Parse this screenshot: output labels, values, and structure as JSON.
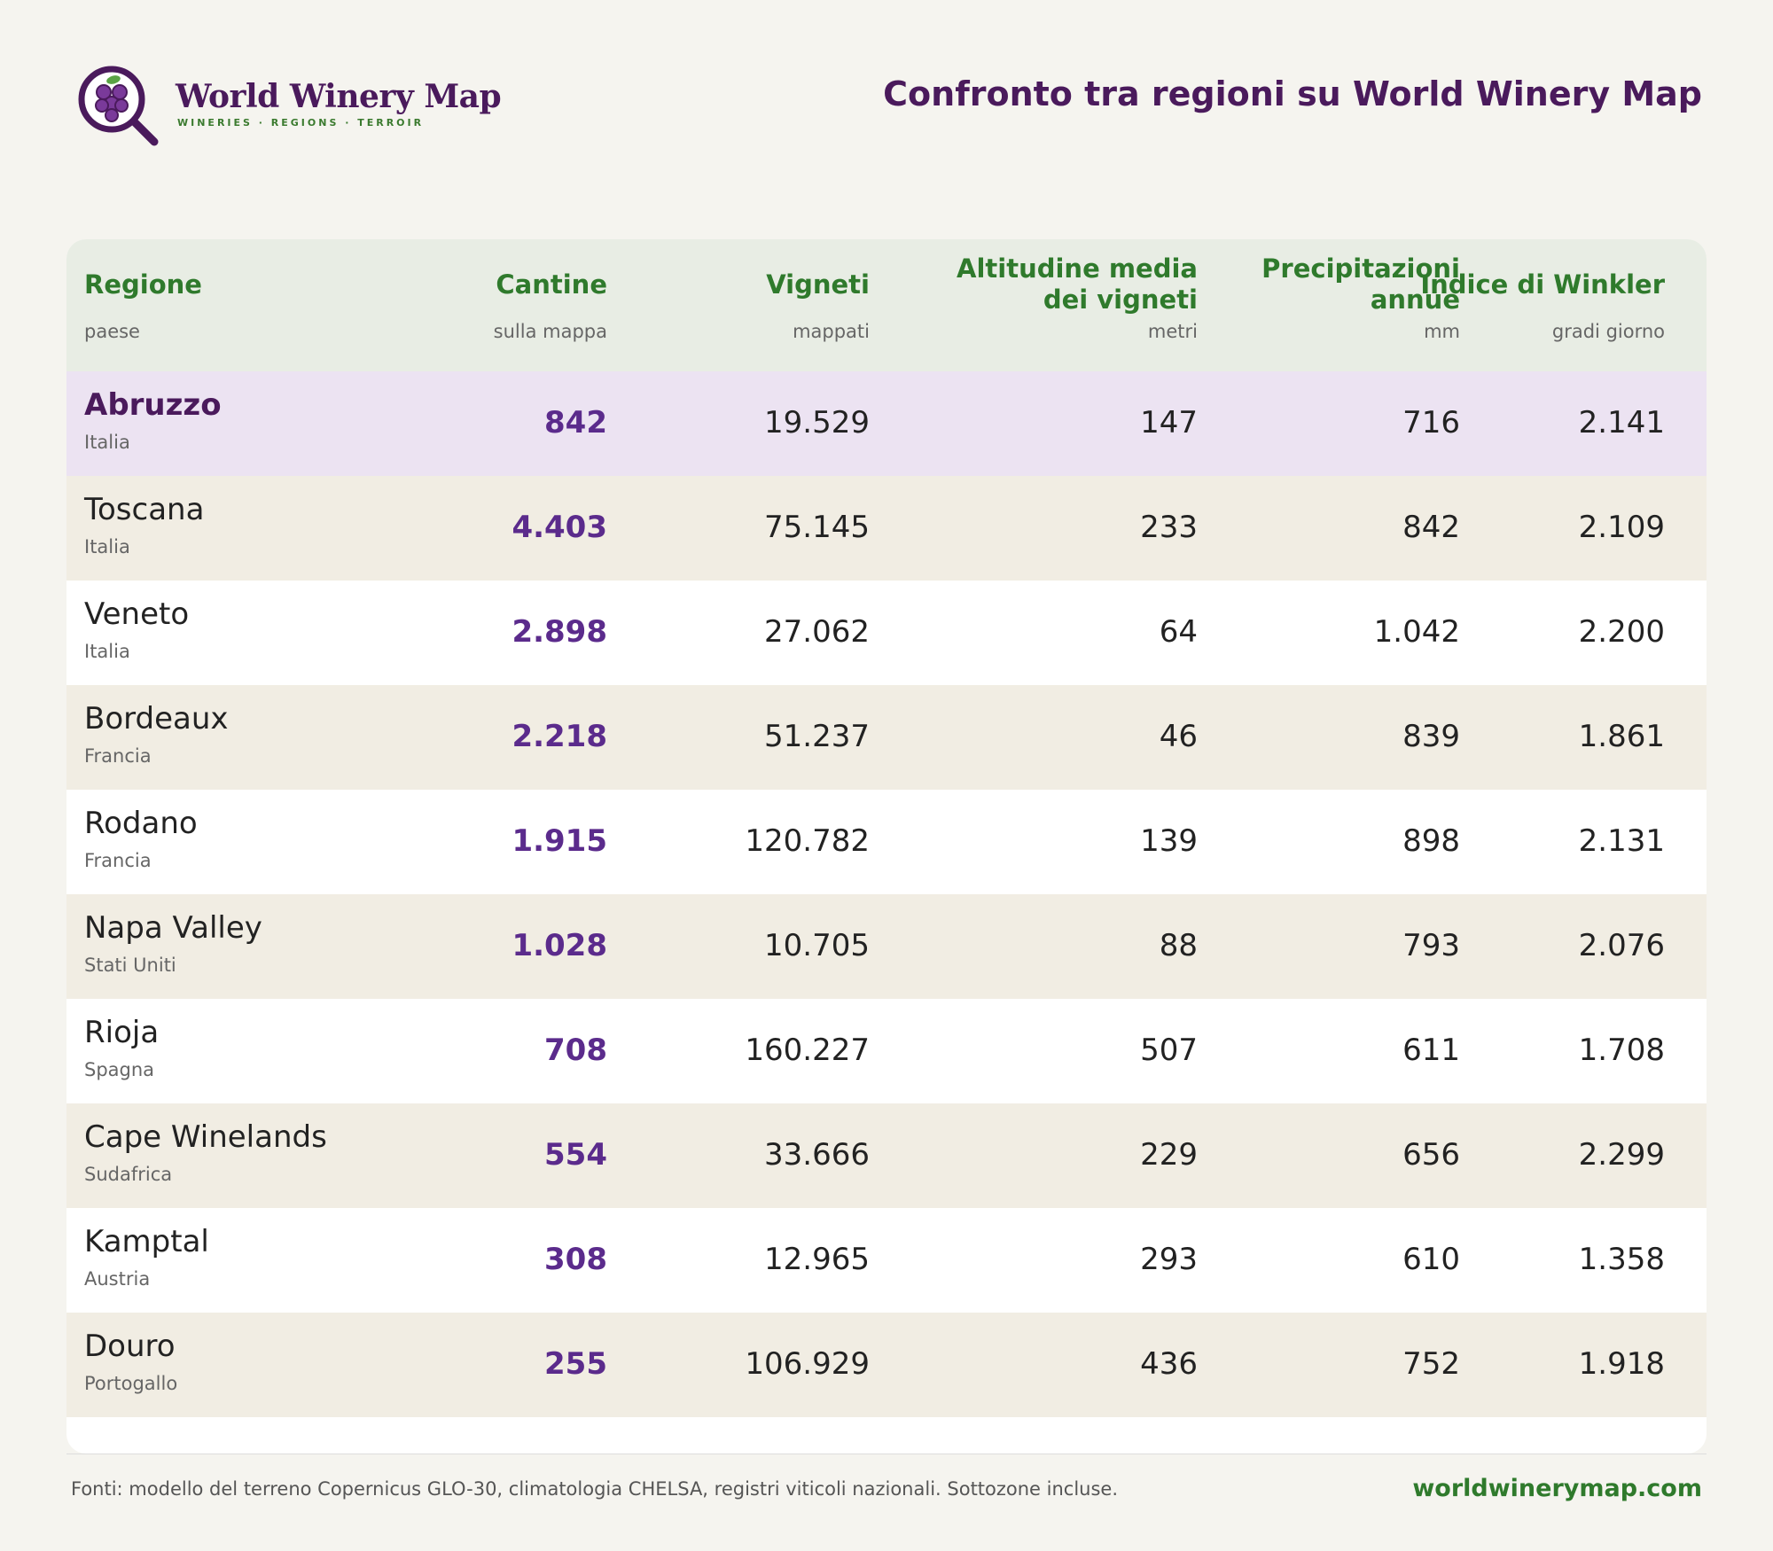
{
  "brand": {
    "name": "World Winery Map",
    "tagline": "WINERIES · REGIONS · TERROIR"
  },
  "page_title": "Confronto tra regioni su World Winery Map",
  "colors": {
    "purple": "#4a1a5c",
    "green": "#2f7a2c",
    "highlight_row": "#ece3f2"
  },
  "table": {
    "columns": [
      {
        "title": "Regione",
        "sub": "paese"
      },
      {
        "title": "Cantine",
        "sub": "sulla mappa"
      },
      {
        "title": "Vigneti",
        "sub": "mappati"
      },
      {
        "title_line1": "Altitudine media",
        "title_line2": "dei vigneti",
        "sub": "metri"
      },
      {
        "title_line1": "Precipitazioni",
        "title_line2": "annue",
        "sub": "mm"
      },
      {
        "title": "Indice di Winkler",
        "sub": "gradi giorno"
      }
    ],
    "rows": [
      {
        "region": "Abruzzo",
        "country": "Italia",
        "cantine": "842",
        "vigneti": "19.529",
        "altitudine": "147",
        "precipitazioni": "716",
        "winkler": "2.141"
      },
      {
        "region": "Toscana",
        "country": "Italia",
        "cantine": "4.403",
        "vigneti": "75.145",
        "altitudine": "233",
        "precipitazioni": "842",
        "winkler": "2.109"
      },
      {
        "region": "Veneto",
        "country": "Italia",
        "cantine": "2.898",
        "vigneti": "27.062",
        "altitudine": "64",
        "precipitazioni": "1.042",
        "winkler": "2.200"
      },
      {
        "region": "Bordeaux",
        "country": "Francia",
        "cantine": "2.218",
        "vigneti": "51.237",
        "altitudine": "46",
        "precipitazioni": "839",
        "winkler": "1.861"
      },
      {
        "region": "Rodano",
        "country": "Francia",
        "cantine": "1.915",
        "vigneti": "120.782",
        "altitudine": "139",
        "precipitazioni": "898",
        "winkler": "2.131"
      },
      {
        "region": "Napa Valley",
        "country": "Stati Uniti",
        "cantine": "1.028",
        "vigneti": "10.705",
        "altitudine": "88",
        "precipitazioni": "793",
        "winkler": "2.076"
      },
      {
        "region": "Rioja",
        "country": "Spagna",
        "cantine": "708",
        "vigneti": "160.227",
        "altitudine": "507",
        "precipitazioni": "611",
        "winkler": "1.708"
      },
      {
        "region": "Cape Winelands",
        "country": "Sudafrica",
        "cantine": "554",
        "vigneti": "33.666",
        "altitudine": "229",
        "precipitazioni": "656",
        "winkler": "2.299"
      },
      {
        "region": "Kamptal",
        "country": "Austria",
        "cantine": "308",
        "vigneti": "12.965",
        "altitudine": "293",
        "precipitazioni": "610",
        "winkler": "1.358"
      },
      {
        "region": "Douro",
        "country": "Portogallo",
        "cantine": "255",
        "vigneti": "106.929",
        "altitudine": "436",
        "precipitazioni": "752",
        "winkler": "1.918"
      }
    ]
  },
  "footer": {
    "sources": "Fonti: modello del terreno Copernicus GLO-30, climatologia CHELSA, registri viticoli nazionali. Sottozone incluse.",
    "url": "worldwinerymap.com"
  }
}
